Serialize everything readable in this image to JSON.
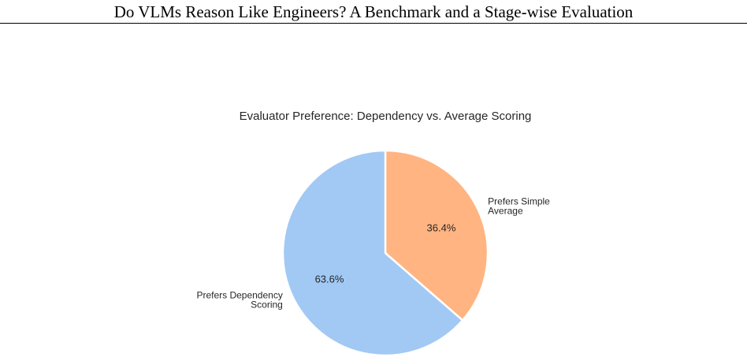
{
  "header": {
    "title": "Do VLMs Reason Like Engineers? A Benchmark and a Stage-wise Evaluation"
  },
  "chart_data": {
    "type": "pie",
    "title": "Evaluator Preference: Dependency vs. Average Scoring",
    "slices": [
      {
        "label_lines": [
          "Prefers Simple",
          "Average"
        ],
        "value": 36.4,
        "pct_label": "36.4%",
        "color": "#FFB482"
      },
      {
        "label_lines": [
          "Prefers Dependency",
          "Scoring"
        ],
        "value": 63.6,
        "pct_label": "63.6%",
        "color": "#A1C9F4"
      }
    ],
    "start_angle_deg": 90,
    "direction": "clockwise",
    "legend": "none"
  }
}
